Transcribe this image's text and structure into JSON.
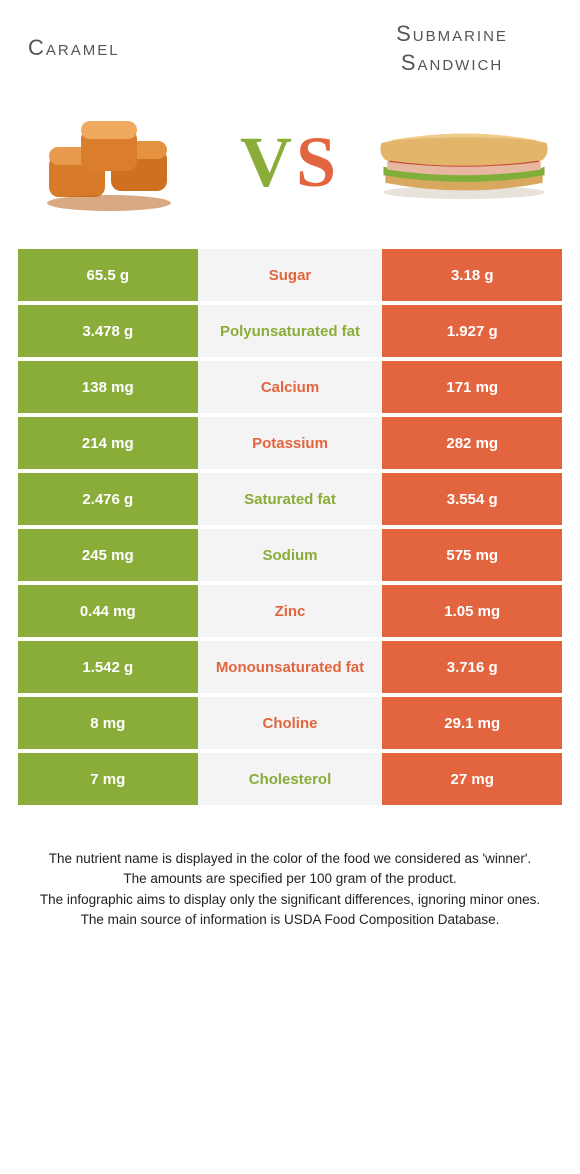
{
  "header": {
    "left_title": "Caramel",
    "right_title": "Submarine Sandwich",
    "vs_v": "V",
    "vs_s": "S"
  },
  "colors": {
    "green": "#8aad3a",
    "orange": "#e2653f",
    "mid_bg": "#f4f4f4",
    "white": "#ffffff"
  },
  "rows": [
    {
      "left": "65.5 g",
      "label": "Sugar",
      "right": "3.18 g",
      "winner": "orange"
    },
    {
      "left": "3.478 g",
      "label": "Polyunsaturated fat",
      "right": "1.927 g",
      "winner": "green"
    },
    {
      "left": "138 mg",
      "label": "Calcium",
      "right": "171 mg",
      "winner": "orange"
    },
    {
      "left": "214 mg",
      "label": "Potassium",
      "right": "282 mg",
      "winner": "orange"
    },
    {
      "left": "2.476 g",
      "label": "Saturated fat",
      "right": "3.554 g",
      "winner": "green"
    },
    {
      "left": "245 mg",
      "label": "Sodium",
      "right": "575 mg",
      "winner": "green"
    },
    {
      "left": "0.44 mg",
      "label": "Zinc",
      "right": "1.05 mg",
      "winner": "orange"
    },
    {
      "left": "1.542 g",
      "label": "Monounsaturated fat",
      "right": "3.716 g",
      "winner": "orange"
    },
    {
      "left": "8 mg",
      "label": "Choline",
      "right": "29.1 mg",
      "winner": "orange"
    },
    {
      "left": "7 mg",
      "label": "Cholesterol",
      "right": "27 mg",
      "winner": "green"
    }
  ],
  "footnotes": {
    "line1": "The nutrient name is displayed in the color of the food we considered as 'winner'.",
    "line2": "The amounts are specified per 100 gram of the product.",
    "line3": "The infographic aims to display only the significant differences, ignoring minor ones.",
    "line4": "The main source of information is USDA Food Composition Database."
  }
}
